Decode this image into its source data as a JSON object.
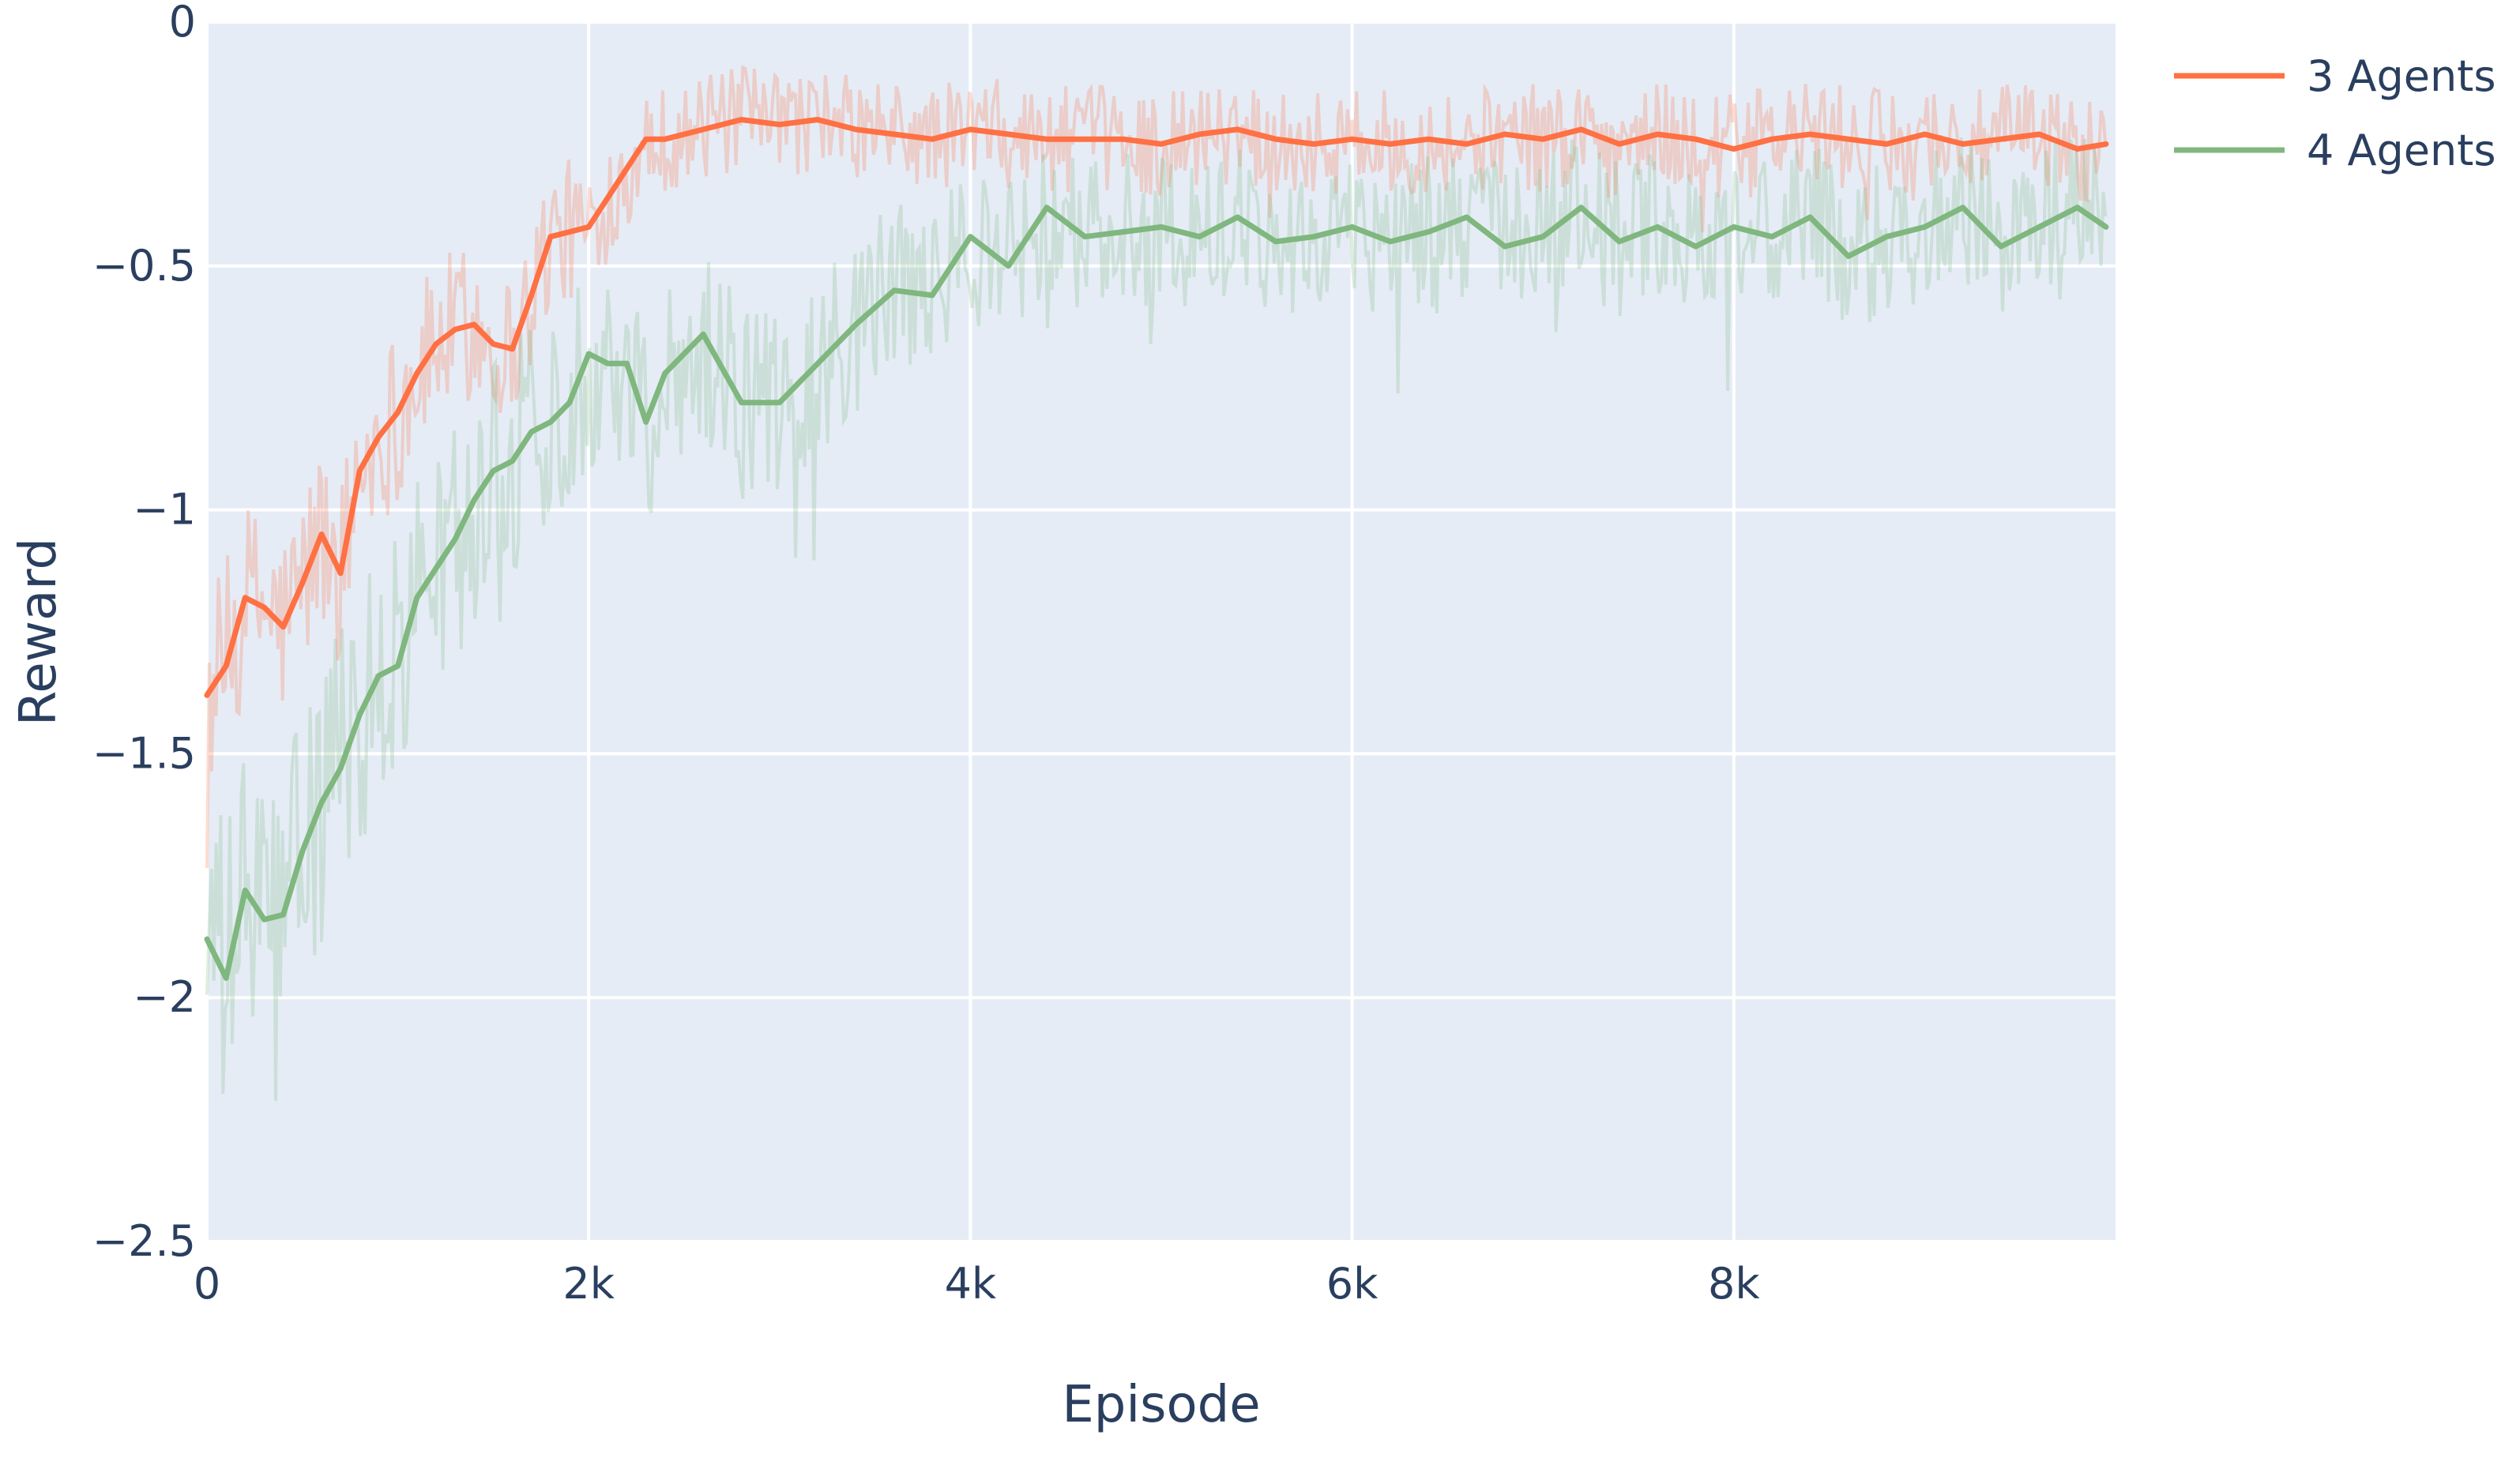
{
  "chart_data": {
    "type": "line",
    "title": "",
    "xlabel": "Episode",
    "ylabel": "Reward",
    "xlim": [
      0,
      10000
    ],
    "ylim": [
      -2.5,
      0
    ],
    "xticks": [
      {
        "value": 0,
        "label": "0"
      },
      {
        "value": 2000,
        "label": "2k"
      },
      {
        "value": 4000,
        "label": "4k"
      },
      {
        "value": 6000,
        "label": "6k"
      },
      {
        "value": 8000,
        "label": "8k"
      }
    ],
    "yticks": [
      {
        "value": 0,
        "label": "0"
      },
      {
        "value": -0.5,
        "label": "−0.5"
      },
      {
        "value": -1,
        "label": "−1"
      },
      {
        "value": -1.5,
        "label": "−1.5"
      },
      {
        "value": -2,
        "label": "−2"
      },
      {
        "value": -2.5,
        "label": "−2.5"
      }
    ],
    "grid": true,
    "legend_position": "top-right",
    "plot_background": "#e5ecf6",
    "series": [
      {
        "name": "3 Agents",
        "color": "#ff7043",
        "raw_opacity": 0.25,
        "x": [
          0,
          100,
          200,
          300,
          400,
          500,
          600,
          700,
          800,
          900,
          1000,
          1100,
          1200,
          1300,
          1400,
          1500,
          1600,
          1700,
          1800,
          1900,
          2000,
          2100,
          2200,
          2300,
          2400,
          2600,
          2800,
          3000,
          3200,
          3400,
          3600,
          3800,
          4000,
          4200,
          4400,
          4600,
          4800,
          5000,
          5200,
          5400,
          5600,
          5800,
          6000,
          6200,
          6400,
          6600,
          6800,
          7000,
          7200,
          7400,
          7600,
          7800,
          8000,
          8200,
          8400,
          8600,
          8800,
          9000,
          9200,
          9400,
          9600,
          9800,
          9950
        ],
        "smoothed": [
          -1.38,
          -1.32,
          -1.18,
          -1.2,
          -1.24,
          -1.15,
          -1.05,
          -1.13,
          -0.92,
          -0.85,
          -0.8,
          -0.72,
          -0.66,
          -0.63,
          -0.62,
          -0.66,
          -0.67,
          -0.56,
          -0.44,
          -0.43,
          -0.42,
          -0.36,
          -0.3,
          -0.24,
          -0.24,
          -0.22,
          -0.2,
          -0.21,
          -0.2,
          -0.22,
          -0.23,
          -0.24,
          -0.22,
          -0.23,
          -0.24,
          -0.24,
          -0.24,
          -0.25,
          -0.23,
          -0.22,
          -0.24,
          -0.25,
          -0.24,
          -0.25,
          -0.24,
          -0.25,
          -0.23,
          -0.24,
          -0.22,
          -0.25,
          -0.23,
          -0.24,
          -0.26,
          -0.24,
          -0.23,
          -0.24,
          -0.25,
          -0.23,
          -0.25,
          -0.24,
          -0.23,
          -0.26,
          -0.25
        ],
        "raw_band": [
          0.22,
          0.22,
          0.2,
          0.2,
          0.2,
          0.2,
          0.2,
          0.2,
          0.19,
          0.19,
          0.18,
          0.17,
          0.17,
          0.17,
          0.17,
          0.16,
          0.16,
          0.15,
          0.15,
          0.15,
          0.14,
          0.13,
          0.12,
          0.12,
          0.11,
          0.11,
          0.11,
          0.11,
          0.11,
          0.11,
          0.11,
          0.11,
          0.11,
          0.11,
          0.11,
          0.11,
          0.11,
          0.11,
          0.11,
          0.11,
          0.11,
          0.11,
          0.11,
          0.11,
          0.11,
          0.11,
          0.11,
          0.11,
          0.11,
          0.11,
          0.11,
          0.11,
          0.11,
          0.11,
          0.11,
          0.11,
          0.11,
          0.11,
          0.11,
          0.11,
          0.11,
          0.11,
          0.11
        ]
      },
      {
        "name": "4 Agents",
        "color": "#7fb77e",
        "raw_opacity": 0.25,
        "x": [
          0,
          100,
          200,
          300,
          400,
          500,
          600,
          700,
          800,
          900,
          1000,
          1100,
          1200,
          1300,
          1400,
          1500,
          1600,
          1700,
          1800,
          1900,
          2000,
          2100,
          2200,
          2300,
          2400,
          2600,
          2800,
          3000,
          3200,
          3400,
          3600,
          3800,
          4000,
          4200,
          4400,
          4600,
          4800,
          5000,
          5200,
          5400,
          5600,
          5800,
          6000,
          6200,
          6400,
          6600,
          6800,
          7000,
          7200,
          7400,
          7600,
          7800,
          8000,
          8200,
          8400,
          8600,
          8800,
          9000,
          9200,
          9400,
          9600,
          9800,
          9950
        ],
        "smoothed": [
          -1.88,
          -1.96,
          -1.78,
          -1.84,
          -1.83,
          -1.7,
          -1.6,
          -1.53,
          -1.42,
          -1.34,
          -1.32,
          -1.18,
          -1.12,
          -1.06,
          -0.98,
          -0.92,
          -0.9,
          -0.84,
          -0.82,
          -0.78,
          -0.68,
          -0.7,
          -0.7,
          -0.82,
          -0.72,
          -0.64,
          -0.78,
          -0.78,
          -0.7,
          -0.62,
          -0.55,
          -0.56,
          -0.44,
          -0.5,
          -0.38,
          -0.44,
          -0.43,
          -0.42,
          -0.44,
          -0.4,
          -0.45,
          -0.44,
          -0.42,
          -0.45,
          -0.43,
          -0.4,
          -0.46,
          -0.44,
          -0.38,
          -0.45,
          -0.42,
          -0.46,
          -0.42,
          -0.44,
          -0.4,
          -0.48,
          -0.44,
          -0.42,
          -0.38,
          -0.46,
          -0.42,
          -0.38,
          -0.42
        ],
        "raw_band": [
          0.32,
          0.32,
          0.3,
          0.3,
          0.3,
          0.3,
          0.29,
          0.29,
          0.28,
          0.28,
          0.27,
          0.27,
          0.26,
          0.26,
          0.25,
          0.25,
          0.24,
          0.24,
          0.24,
          0.23,
          0.23,
          0.22,
          0.22,
          0.22,
          0.21,
          0.21,
          0.2,
          0.2,
          0.19,
          0.18,
          0.18,
          0.17,
          0.17,
          0.17,
          0.16,
          0.16,
          0.16,
          0.16,
          0.16,
          0.16,
          0.16,
          0.16,
          0.16,
          0.16,
          0.16,
          0.16,
          0.16,
          0.16,
          0.16,
          0.16,
          0.16,
          0.16,
          0.16,
          0.16,
          0.16,
          0.16,
          0.16,
          0.16,
          0.16,
          0.16,
          0.16,
          0.16,
          0.16
        ]
      }
    ]
  }
}
